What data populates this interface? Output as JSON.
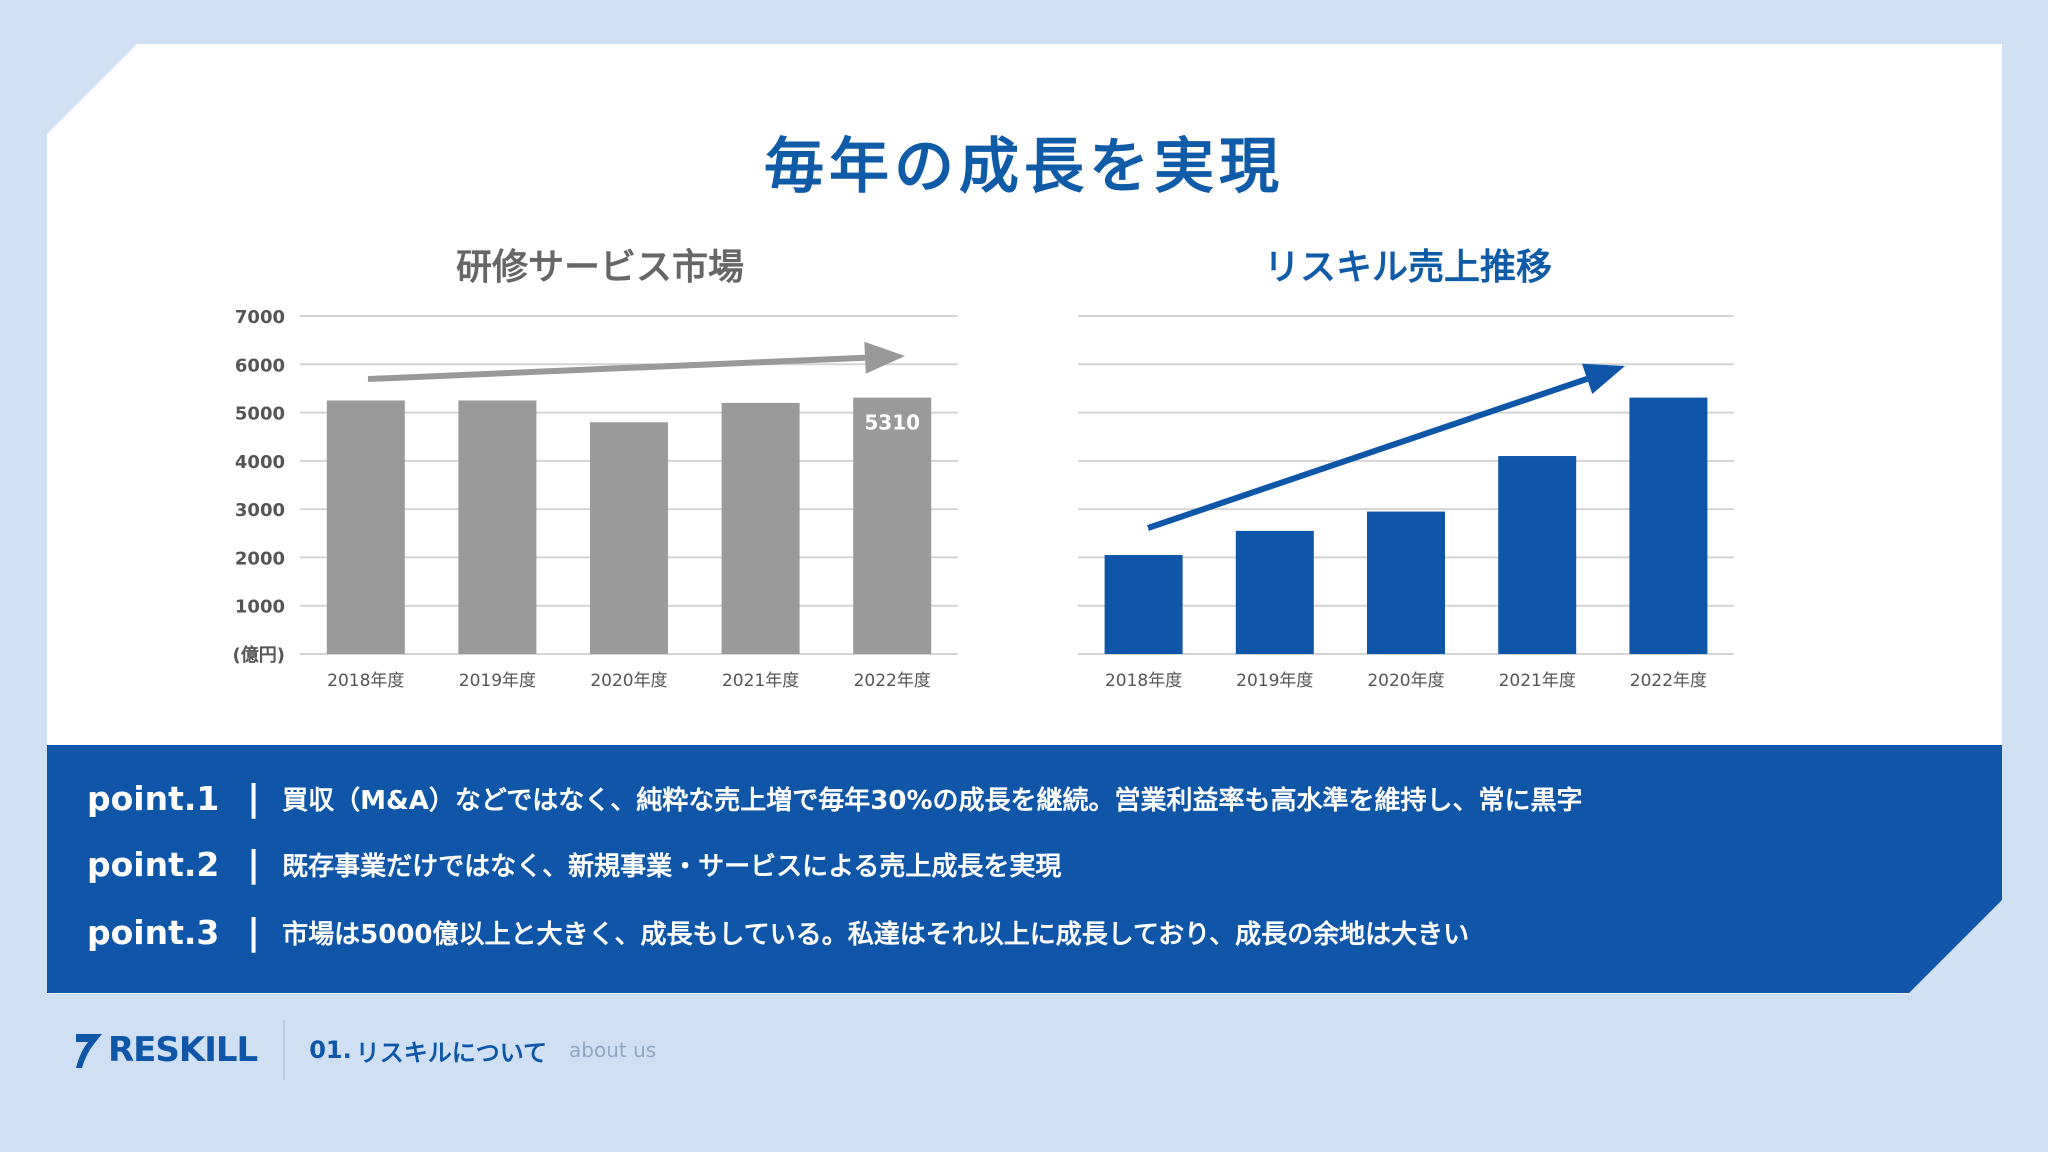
{
  "title": "毎年の成長を実現",
  "chart_data": [
    {
      "type": "bar",
      "title": "研修サービス市場",
      "categories": [
        "2018年度",
        "2019年度",
        "2020年度",
        "2021年度",
        "2022年度"
      ],
      "values": [
        5250,
        5250,
        4800,
        5200,
        5310
      ],
      "ylim": [
        0,
        7000
      ],
      "yticks": [
        0,
        1000,
        2000,
        3000,
        4000,
        5000,
        6000,
        7000
      ],
      "y_unit_label": "(億円)",
      "data_label": {
        "index": 4,
        "text": "5310"
      },
      "color": "#9a9a9a",
      "trend_color": "#999999",
      "grid": true
    },
    {
      "type": "bar",
      "title": "リスキル売上推移",
      "categories": [
        "2018年度",
        "2019年度",
        "2020年度",
        "2021年度",
        "2022年度"
      ],
      "values": [
        2050,
        2550,
        2950,
        4100,
        5310
      ],
      "ylim": [
        0,
        7000
      ],
      "color": "#0f56a8",
      "trend_color": "#0f56a8",
      "grid": true
    }
  ],
  "points": [
    {
      "label": "point.1",
      "sep": "|",
      "text": "買収（M&A）などではなく、純粋な売上増で毎年30%の成長を継続。営業利益率も高水準を維持し、常に黒字"
    },
    {
      "label": "point.2",
      "sep": "|",
      "text": "既存事業だけではなく、新規事業・サービスによる売上成長を実現"
    },
    {
      "label": "point.3",
      "sep": "|",
      "text": "市場は5000億以上と大きく、成長もしている。私達はそれ以上に成長しており、成長の余地は大きい"
    }
  ],
  "footer": {
    "logo_text": "RESKILL",
    "section_number": "01.",
    "section_name": "リスキルについて",
    "section_en": "about us"
  }
}
